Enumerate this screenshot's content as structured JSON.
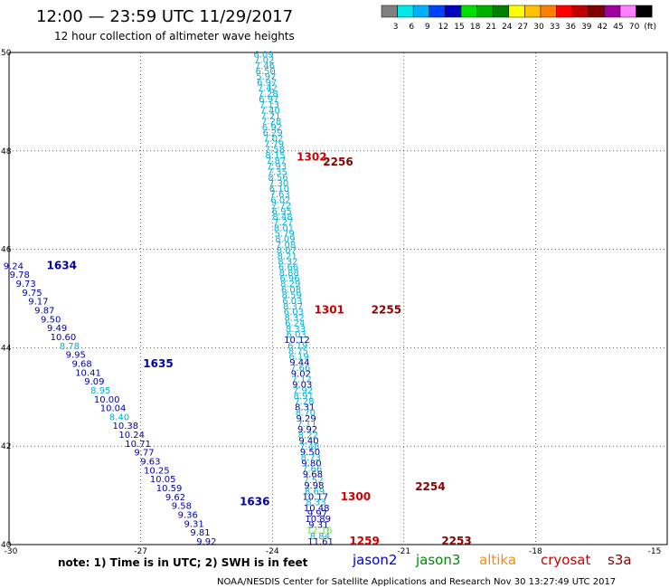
{
  "header": {
    "title": "12:00 — 23:59 UTC 11/29/2017",
    "subtitle": "12 hour collection of altimeter wave heights"
  },
  "colorbar": {
    "colors": [
      "#808080",
      "#00e8e8",
      "#00b0ff",
      "#0040ff",
      "#0000c0",
      "#00e000",
      "#00b000",
      "#008000",
      "#ffff00",
      "#ffc000",
      "#ff8000",
      "#ff0000",
      "#c00000",
      "#800000",
      "#a000a0",
      "#ff80ff",
      "#000000"
    ],
    "labels": [
      "3",
      "6",
      "9",
      "12",
      "15",
      "18",
      "21",
      "24",
      "27",
      "30",
      "33",
      "36",
      "39",
      "42",
      "45",
      "70",
      "(ft)"
    ]
  },
  "footer": {
    "note": "note: 1) Time is in UTC; 2) SWH is in feet",
    "credit": "NOAA/NESDIS Center for Satellite Applications and Research   Nov 30 13:27:49 UTC 2017",
    "satellites": [
      {
        "name": "jason2",
        "color": "#0000cc"
      },
      {
        "name": "jason3",
        "color": "#008800"
      },
      {
        "name": "altika",
        "color": "#ff8800"
      },
      {
        "name": "cryosat",
        "color": "#cc0000"
      },
      {
        "name": "s3a",
        "color": "#880000"
      }
    ]
  },
  "chart_data": {
    "type": "scatter",
    "title": "12:00 — 23:59 UTC 11/29/2017",
    "xlim": [
      -30,
      -15
    ],
    "ylim": [
      40,
      50
    ],
    "xticks": [
      "-30",
      "-27",
      "-24",
      "-21",
      "-18",
      "-15"
    ],
    "yticks": [
      "40",
      "42",
      "44",
      "46",
      "48",
      "50"
    ],
    "grid": true,
    "colors": {
      "cyan": "#00b0d8",
      "blue": "#0000aa",
      "lightgreen": "#66dd44",
      "red": "#cc0000",
      "darkred": "#880000"
    },
    "tracks": [
      {
        "name": "track-a",
        "start": [
          -24.2,
          49.9
        ],
        "end": [
          -22.9,
          40.0
        ],
        "labels": [
          "6.09",
          "7.02",
          "7.46",
          "6.50",
          "5.97",
          "6.97",
          "7.42",
          "7.28",
          "6.97",
          "7.13",
          "7.40",
          "7.21",
          "7.28",
          "6.92",
          "6.29",
          "7.02",
          "7.79",
          "7.58",
          "8.15",
          "7.87",
          "7.93",
          "7.35",
          "8.56",
          "7.30",
          "6.10",
          "7.63",
          "6.02",
          "7.72",
          "6.95",
          "8.48",
          "7.27",
          "8.01",
          "5.79",
          "8.09",
          "7.08",
          "8.07",
          "8.21",
          "8.32",
          "6.66",
          "8.88",
          "6.96",
          "8.29",
          "6.08",
          "8.59",
          "6.03",
          "8.37",
          "6.03",
          "8.32",
          "6.24",
          "8.33",
          "6.03",
          "10.12",
          "6.19",
          "8.75",
          "6.19",
          "9.44",
          "7.66",
          "9.02",
          "7.12",
          "9.03",
          "7.92",
          "8.91",
          "7.28",
          "8.31",
          "8.70",
          "9.29",
          "7.11",
          "9.92",
          "8.22",
          "9.40",
          "7.48",
          "9.50",
          "8.73",
          "9.80",
          "7.66",
          "9.68",
          "7.52",
          "9.98",
          "8.69",
          "10.17",
          "8.33",
          "10.48",
          "9.97",
          "10.89",
          "9.31",
          "12.16",
          "8.84",
          "11.61"
        ],
        "colors": [
          "cyan",
          "cyan",
          "cyan",
          "cyan",
          "cyan",
          "cyan",
          "cyan",
          "cyan",
          "cyan",
          "cyan",
          "cyan",
          "cyan",
          "cyan",
          "cyan",
          "cyan",
          "cyan",
          "cyan",
          "cyan",
          "cyan",
          "cyan",
          "cyan",
          "cyan",
          "cyan",
          "cyan",
          "cyan",
          "cyan",
          "cyan",
          "cyan",
          "cyan",
          "cyan",
          "cyan",
          "cyan",
          "cyan",
          "cyan",
          "cyan",
          "cyan",
          "cyan",
          "cyan",
          "cyan",
          "cyan",
          "cyan",
          "cyan",
          "cyan",
          "cyan",
          "cyan",
          "cyan",
          "cyan",
          "cyan",
          "cyan",
          "cyan",
          "cyan",
          "blue",
          "cyan",
          "cyan",
          "cyan",
          "blue",
          "cyan",
          "blue",
          "cyan",
          "blue",
          "cyan",
          "cyan",
          "cyan",
          "blue",
          "cyan",
          "blue",
          "cyan",
          "blue",
          "cyan",
          "blue",
          "cyan",
          "blue",
          "cyan",
          "blue",
          "cyan",
          "blue",
          "cyan",
          "blue",
          "cyan",
          "blue",
          "cyan",
          "blue",
          "blue",
          "blue",
          "blue",
          "lightgreen",
          "cyan",
          "blue"
        ],
        "times": [
          {
            "label": "1302",
            "lat": 47.8,
            "lon": -23.1,
            "color": "red"
          },
          {
            "label": "1301",
            "lat": 44.7,
            "lon": -22.7,
            "color": "red"
          },
          {
            "label": "1300",
            "lat": 40.9,
            "lon": -22.1,
            "color": "red"
          },
          {
            "label": "1259",
            "lat": 40.0,
            "lon": -21.9,
            "color": "red"
          }
        ]
      },
      {
        "name": "track-b",
        "times": [
          {
            "label": "2256",
            "lat": 47.7,
            "lon": -22.5,
            "color": "darkred"
          },
          {
            "label": "2255",
            "lat": 44.7,
            "lon": -21.4,
            "color": "darkred"
          },
          {
            "label": "2254",
            "lat": 41.1,
            "lon": -20.4,
            "color": "darkred"
          },
          {
            "label": "2253",
            "lat": 40.0,
            "lon": -19.8,
            "color": "darkred"
          }
        ]
      },
      {
        "name": "track-c",
        "start": [
          -29.9,
          45.6
        ],
        "end": [
          -25.5,
          40.0
        ],
        "labels": [
          "9.24",
          "9.78",
          "9.73",
          "9.75",
          "9.17",
          "9.87",
          "9.50",
          "9.49",
          "10.60",
          "8.78",
          "9.95",
          "9.68",
          "10.41",
          "9.09",
          "8.95",
          "10.00",
          "10.04",
          "8.40",
          "10.38",
          "10.24",
          "10.71",
          "9.77",
          "9.63",
          "10.25",
          "10.05",
          "10.59",
          "9.62",
          "9.58",
          "9.36",
          "9.31",
          "9.81",
          "9.92"
        ],
        "colors": [
          "blue",
          "blue",
          "blue",
          "blue",
          "blue",
          "blue",
          "blue",
          "blue",
          "blue",
          "cyan",
          "blue",
          "blue",
          "blue",
          "blue",
          "cyan",
          "blue",
          "blue",
          "cyan",
          "blue",
          "blue",
          "blue",
          "blue",
          "blue",
          "blue",
          "blue",
          "blue",
          "blue",
          "blue",
          "blue",
          "blue",
          "blue",
          "blue"
        ],
        "times": [
          {
            "label": "1634",
            "lat": 45.6,
            "lon": -28.8,
            "color": "blue"
          },
          {
            "label": "1635",
            "lat": 43.6,
            "lon": -26.6,
            "color": "blue"
          },
          {
            "label": "1636",
            "lat": 40.8,
            "lon": -24.4,
            "color": "blue"
          }
        ]
      }
    ]
  }
}
